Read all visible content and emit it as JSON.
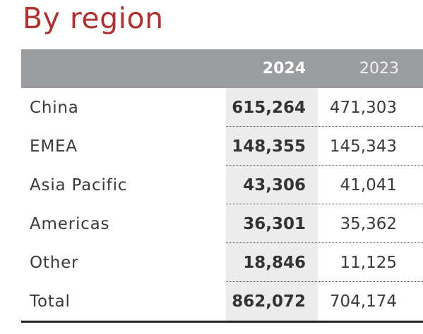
{
  "title": "By region",
  "header": {
    "year_current": "2024",
    "year_prior": "2023"
  },
  "rows": [
    {
      "label": "China",
      "current": "615,264",
      "prior": "471,303"
    },
    {
      "label": "EMEA",
      "current": "148,355",
      "prior": "145,343"
    },
    {
      "label": "Asia Pacific",
      "current": "43,306",
      "prior": "41,041"
    },
    {
      "label": "Americas",
      "current": "36,301",
      "prior": "35,362"
    },
    {
      "label": "Other",
      "current": "18,846",
      "prior": "11,125"
    },
    {
      "label": "Total",
      "current": "862,072",
      "prior": "704,174"
    }
  ],
  "colors": {
    "title": "#b0312f",
    "header_bg": "#9b9c9f",
    "current_col_bg": "#ececec"
  }
}
